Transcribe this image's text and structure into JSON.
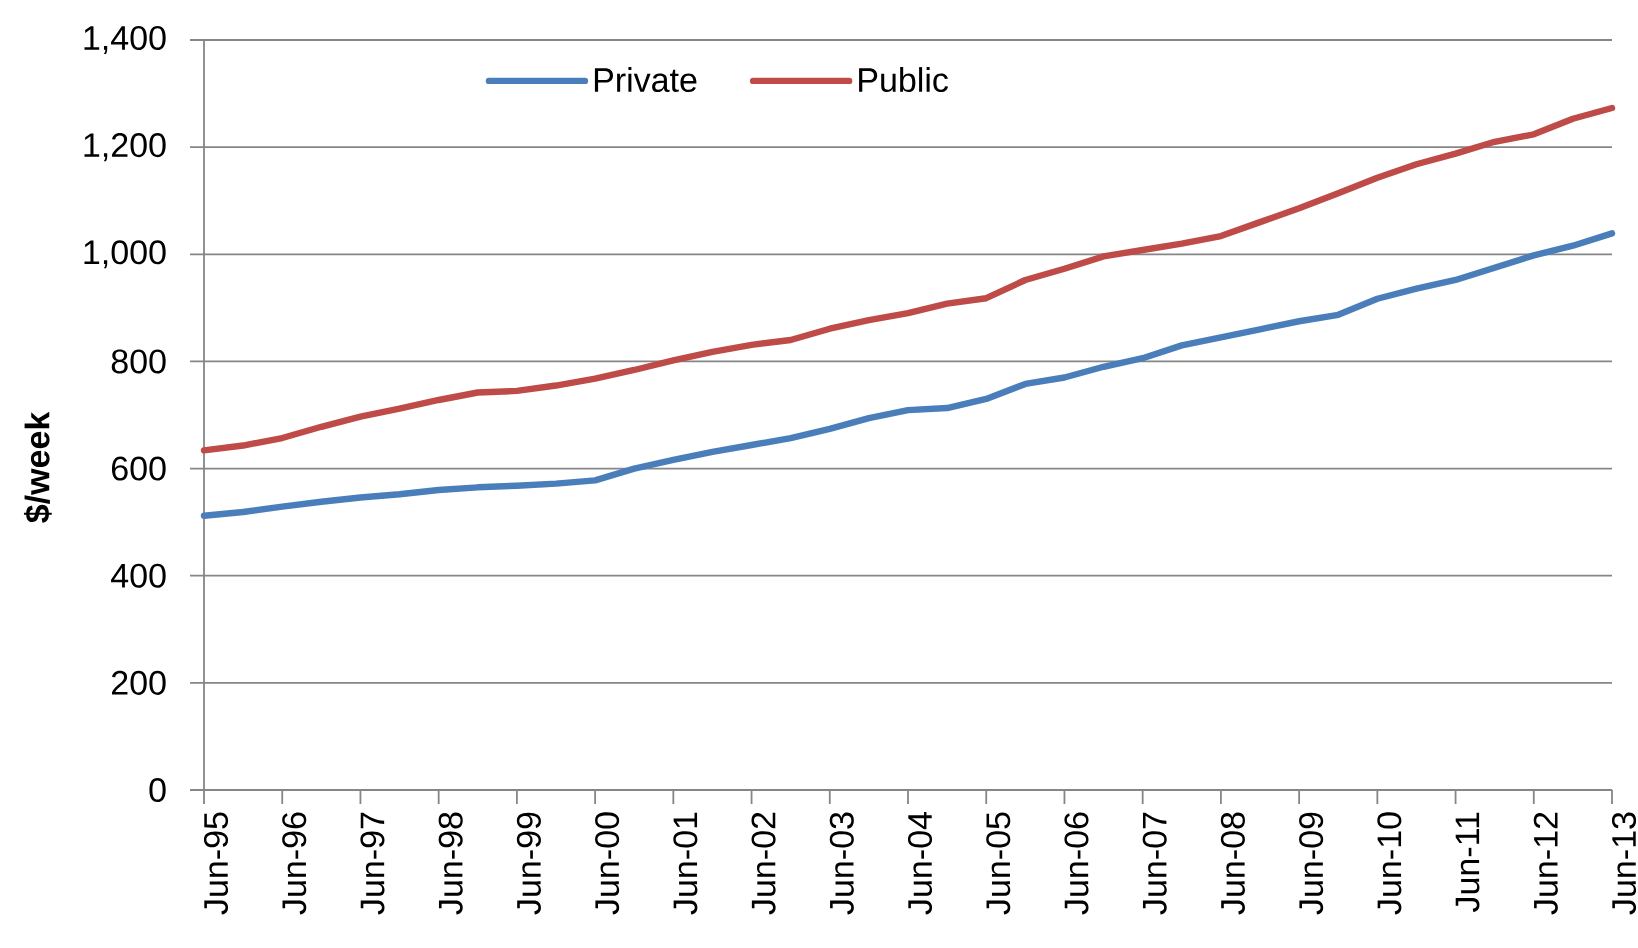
{
  "chart_data": {
    "type": "line",
    "ylabel": "$/week",
    "x": [
      "1995-06",
      "1995-12",
      "1996-06",
      "1996-12",
      "1997-06",
      "1997-12",
      "1998-06",
      "1998-12",
      "1999-06",
      "1999-12",
      "2000-06",
      "2000-12",
      "2001-06",
      "2001-12",
      "2002-06",
      "2002-12",
      "2003-06",
      "2003-12",
      "2004-06",
      "2004-12",
      "2005-06",
      "2005-12",
      "2006-06",
      "2006-12",
      "2007-06",
      "2007-12",
      "2008-06",
      "2008-12",
      "2009-06",
      "2009-12",
      "2010-06",
      "2010-12",
      "2011-06",
      "2011-12",
      "2012-06",
      "2012-12",
      "2013-06"
    ],
    "series": [
      {
        "name": "Private",
        "color": "#4a7ebb",
        "values": [
          512,
          519,
          529,
          538,
          546,
          552,
          560,
          565,
          568,
          572,
          578,
          600,
          616,
          631,
          644,
          657,
          674,
          694,
          709,
          713,
          730,
          758,
          770,
          790,
          806,
          830,
          845,
          860,
          875,
          887,
          917,
          936,
          952,
          975,
          998,
          1016,
          1039
        ]
      },
      {
        "name": "Public",
        "color": "#be4b48",
        "values": [
          634,
          643,
          657,
          678,
          697,
          712,
          728,
          742,
          745,
          755,
          768,
          784,
          802,
          818,
          831,
          840,
          861,
          877,
          890,
          908,
          918,
          952,
          973,
          996,
          1008,
          1020,
          1034,
          1060,
          1086,
          1114,
          1143,
          1168,
          1188,
          1210,
          1224,
          1253,
          1273
        ]
      }
    ],
    "xlim": [
      "1995-06",
      "2013-06"
    ],
    "xticks": [
      {
        "value": "1995-06",
        "label": "Jun-95"
      },
      {
        "value": "1996-06",
        "label": "Jun-96"
      },
      {
        "value": "1997-06",
        "label": "Jun-97"
      },
      {
        "value": "1998-06",
        "label": "Jun-98"
      },
      {
        "value": "1999-06",
        "label": "Jun-99"
      },
      {
        "value": "2000-06",
        "label": "Jun-00"
      },
      {
        "value": "2001-06",
        "label": "Jun-01"
      },
      {
        "value": "2002-06",
        "label": "Jun-02"
      },
      {
        "value": "2003-06",
        "label": "Jun-03"
      },
      {
        "value": "2004-06",
        "label": "Jun-04"
      },
      {
        "value": "2005-06",
        "label": "Jun-05"
      },
      {
        "value": "2006-06",
        "label": "Jun-06"
      },
      {
        "value": "2007-06",
        "label": "Jun-07"
      },
      {
        "value": "2008-06",
        "label": "Jun-08"
      },
      {
        "value": "2009-06",
        "label": "Jun-09"
      },
      {
        "value": "2010-06",
        "label": "Jun-10"
      },
      {
        "value": "2011-06",
        "label": "Jun-11"
      },
      {
        "value": "2012-06",
        "label": "Jun-12"
      },
      {
        "value": "2013-06",
        "label": "Jun-13"
      }
    ],
    "ylim": [
      0,
      1400
    ],
    "yticks": [
      0,
      200,
      400,
      600,
      800,
      {
        "value": 1000,
        "label": "1,000"
      },
      {
        "value": 1200,
        "label": "1,200"
      },
      {
        "value": 1400,
        "label": "1,400"
      }
    ],
    "grid": "y",
    "legend": "top"
  }
}
